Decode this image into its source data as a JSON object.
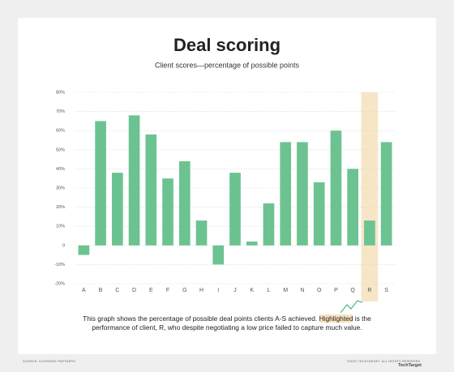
{
  "chart_data": {
    "type": "bar",
    "title": "Deal scoring",
    "subtitle": "Client scores—percentage of possible points",
    "categories": [
      "A",
      "B",
      "C",
      "D",
      "E",
      "F",
      "G",
      "H",
      "I",
      "J",
      "K",
      "L",
      "M",
      "N",
      "O",
      "P",
      "Q",
      "R",
      "S"
    ],
    "values": [
      -5,
      65,
      38,
      68,
      58,
      35,
      44,
      13,
      -10,
      38,
      2,
      22,
      54,
      54,
      33,
      60,
      40,
      13,
      54
    ],
    "color": "#6cc391",
    "highlighted": "R",
    "highlight_color": "#f7e6c6",
    "ylim": [
      -20,
      80
    ],
    "yticks": [
      {
        "value": -20,
        "label": "-20%"
      },
      {
        "value": -10,
        "label": "-10%"
      },
      {
        "value": 0,
        "label": "0"
      },
      {
        "value": 10,
        "label": "10%"
      },
      {
        "value": 20,
        "label": "20%"
      },
      {
        "value": 30,
        "label": "30%"
      },
      {
        "value": 40,
        "label": "40%"
      },
      {
        "value": 50,
        "label": "50%"
      },
      {
        "value": 60,
        "label": "60%"
      },
      {
        "value": 70,
        "label": "70%"
      },
      {
        "value": 80,
        "label": "80%"
      }
    ],
    "grid": true
  },
  "caption": [
    "This graph shows the percentage of possible deal points clients A-S achieved. ",
    "Highlighted",
    " is the performance of client, R, who despite negotiating a low price failed to capture much value."
  ],
  "source": "SOURCE: CLIENSIDE PARTNERS",
  "copyright": "©2021 TECHTARGET. ALL RIGHTS RESERVED",
  "logo": "TechTarget"
}
